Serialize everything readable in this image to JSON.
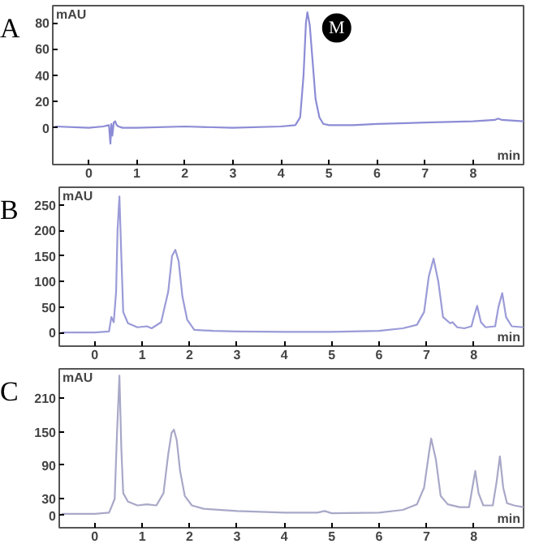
{
  "chart_data": [
    {
      "type": "line",
      "title": "A",
      "xlabel": "min",
      "ylabel": "mAU",
      "xlim": [
        -0.75,
        9.05
      ],
      "ylim": [
        -28,
        93
      ],
      "xticks": [
        0,
        1,
        2,
        3,
        4,
        5,
        6,
        7,
        8
      ],
      "yticks": [
        0,
        20,
        40,
        60,
        80
      ],
      "grid": false,
      "marker": "none",
      "line_style": "solid",
      "annotations": [
        {
          "text": "M",
          "x": 5.16,
          "y": 76
        }
      ],
      "series": [
        {
          "color": "#8c8cd6",
          "x": [
            -0.7,
            0,
            0.3,
            0.42,
            0.45,
            0.47,
            0.49,
            0.52,
            0.55,
            0.58,
            0.62,
            0.7,
            1,
            2,
            3,
            4,
            4.3,
            4.4,
            4.47,
            4.52,
            4.55,
            4.6,
            4.66,
            4.72,
            4.8,
            4.88,
            5,
            5.5,
            6,
            7,
            8,
            8.45,
            8.52,
            8.6,
            9.05
          ],
          "values": [
            1,
            0,
            1,
            2,
            -12,
            3,
            -6,
            4,
            5,
            2,
            1,
            0,
            0,
            1,
            0,
            1,
            2,
            8,
            40,
            80,
            88,
            78,
            50,
            22,
            8,
            3,
            2,
            2,
            3,
            4,
            5,
            6,
            7,
            6,
            5
          ]
        }
      ]
    },
    {
      "type": "line",
      "title": "B",
      "xlabel": "min",
      "ylabel": "mAU",
      "xlim": [
        -0.75,
        9.05
      ],
      "ylim": [
        -27,
        285
      ],
      "xticks": [
        0,
        1,
        2,
        3,
        4,
        5,
        6,
        7,
        8
      ],
      "yticks": [
        0,
        50,
        100,
        150,
        200,
        250
      ],
      "grid": false,
      "marker": "none",
      "line_style": "solid",
      "series": [
        {
          "color": "#9b9bd8",
          "x": [
            -0.7,
            0,
            0.3,
            0.35,
            0.4,
            0.45,
            0.48,
            0.52,
            0.56,
            0.6,
            0.7,
            0.9,
            1.1,
            1.2,
            1.4,
            1.55,
            1.63,
            1.7,
            1.77,
            1.85,
            1.95,
            2.1,
            2.5,
            3,
            4,
            5,
            6,
            6.5,
            6.8,
            6.95,
            7.05,
            7.15,
            7.25,
            7.35,
            7.5,
            7.55,
            7.65,
            7.8,
            7.95,
            8.0,
            8.07,
            8.15,
            8.25,
            8.45,
            8.52,
            8.6,
            8.68,
            8.8,
            9.05
          ],
          "values": [
            0,
            0,
            2,
            30,
            20,
            80,
            200,
            267,
            150,
            40,
            18,
            10,
            12,
            8,
            20,
            80,
            150,
            162,
            140,
            70,
            25,
            5,
            3,
            2,
            1,
            1,
            3,
            8,
            15,
            40,
            110,
            145,
            100,
            30,
            18,
            20,
            10,
            8,
            12,
            30,
            52,
            20,
            10,
            12,
            50,
            77,
            30,
            12,
            10
          ]
        }
      ]
    },
    {
      "type": "line",
      "title": "C",
      "xlabel": "min",
      "ylabel": "mAU",
      "xlim": [
        -0.75,
        9.05
      ],
      "ylim": [
        -22,
        263
      ],
      "xticks": [
        0,
        1,
        2,
        3,
        4,
        5,
        6,
        7,
        8
      ],
      "yticks": [
        0,
        30,
        90,
        150,
        210
      ],
      "grid": false,
      "marker": "none",
      "line_style": "solid",
      "series": [
        {
          "color": "#a8a8c8",
          "x": [
            -0.7,
            0,
            0.3,
            0.35,
            0.42,
            0.47,
            0.52,
            0.56,
            0.6,
            0.7,
            0.9,
            1.1,
            1.3,
            1.45,
            1.55,
            1.62,
            1.67,
            1.73,
            1.8,
            1.9,
            2.05,
            2.3,
            3,
            4,
            4.7,
            4.85,
            5,
            6,
            6.5,
            6.8,
            6.95,
            7.05,
            7.1,
            7.2,
            7.3,
            7.45,
            7.7,
            7.9,
            7.97,
            8.03,
            8.1,
            8.2,
            8.4,
            8.48,
            8.55,
            8.62,
            8.7,
            8.85,
            9.05
          ],
          "values": [
            3,
            3,
            5,
            15,
            30,
            150,
            251,
            120,
            40,
            25,
            18,
            20,
            18,
            40,
            110,
            148,
            154,
            135,
            80,
            35,
            18,
            12,
            8,
            5,
            5,
            8,
            4,
            5,
            10,
            20,
            50,
            110,
            138,
            100,
            35,
            20,
            15,
            15,
            50,
            80,
            40,
            18,
            18,
            60,
            106,
            50,
            22,
            18,
            15
          ]
        }
      ]
    }
  ]
}
